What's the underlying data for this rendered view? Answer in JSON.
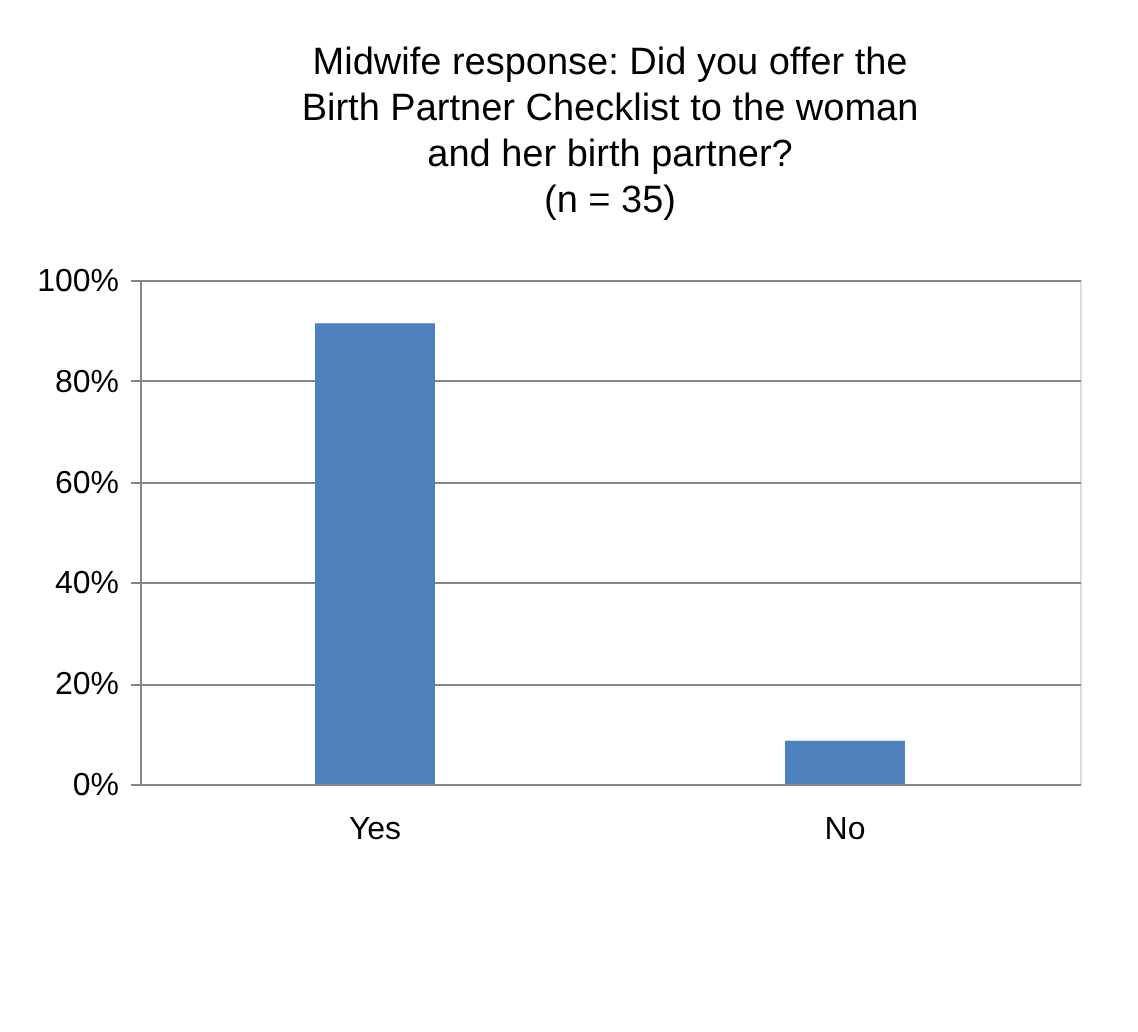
{
  "chart_data": {
    "type": "bar",
    "title": "Midwife response: Did you offer the\nBirth Partner Checklist to the woman\nand her birth partner?\n(n = 35)",
    "categories": [
      "Yes",
      "No"
    ],
    "values": [
      91.4,
      8.6
    ],
    "color": "#4f81bd",
    "ylim": [
      0,
      100
    ],
    "yticks": [
      {
        "value": 0,
        "label": "0%"
      },
      {
        "value": 20,
        "label": "20%"
      },
      {
        "value": 40,
        "label": "40%"
      },
      {
        "value": 60,
        "label": "60%"
      },
      {
        "value": 80,
        "label": "80%"
      },
      {
        "value": 100,
        "label": "100%"
      }
    ],
    "grid": "y"
  }
}
